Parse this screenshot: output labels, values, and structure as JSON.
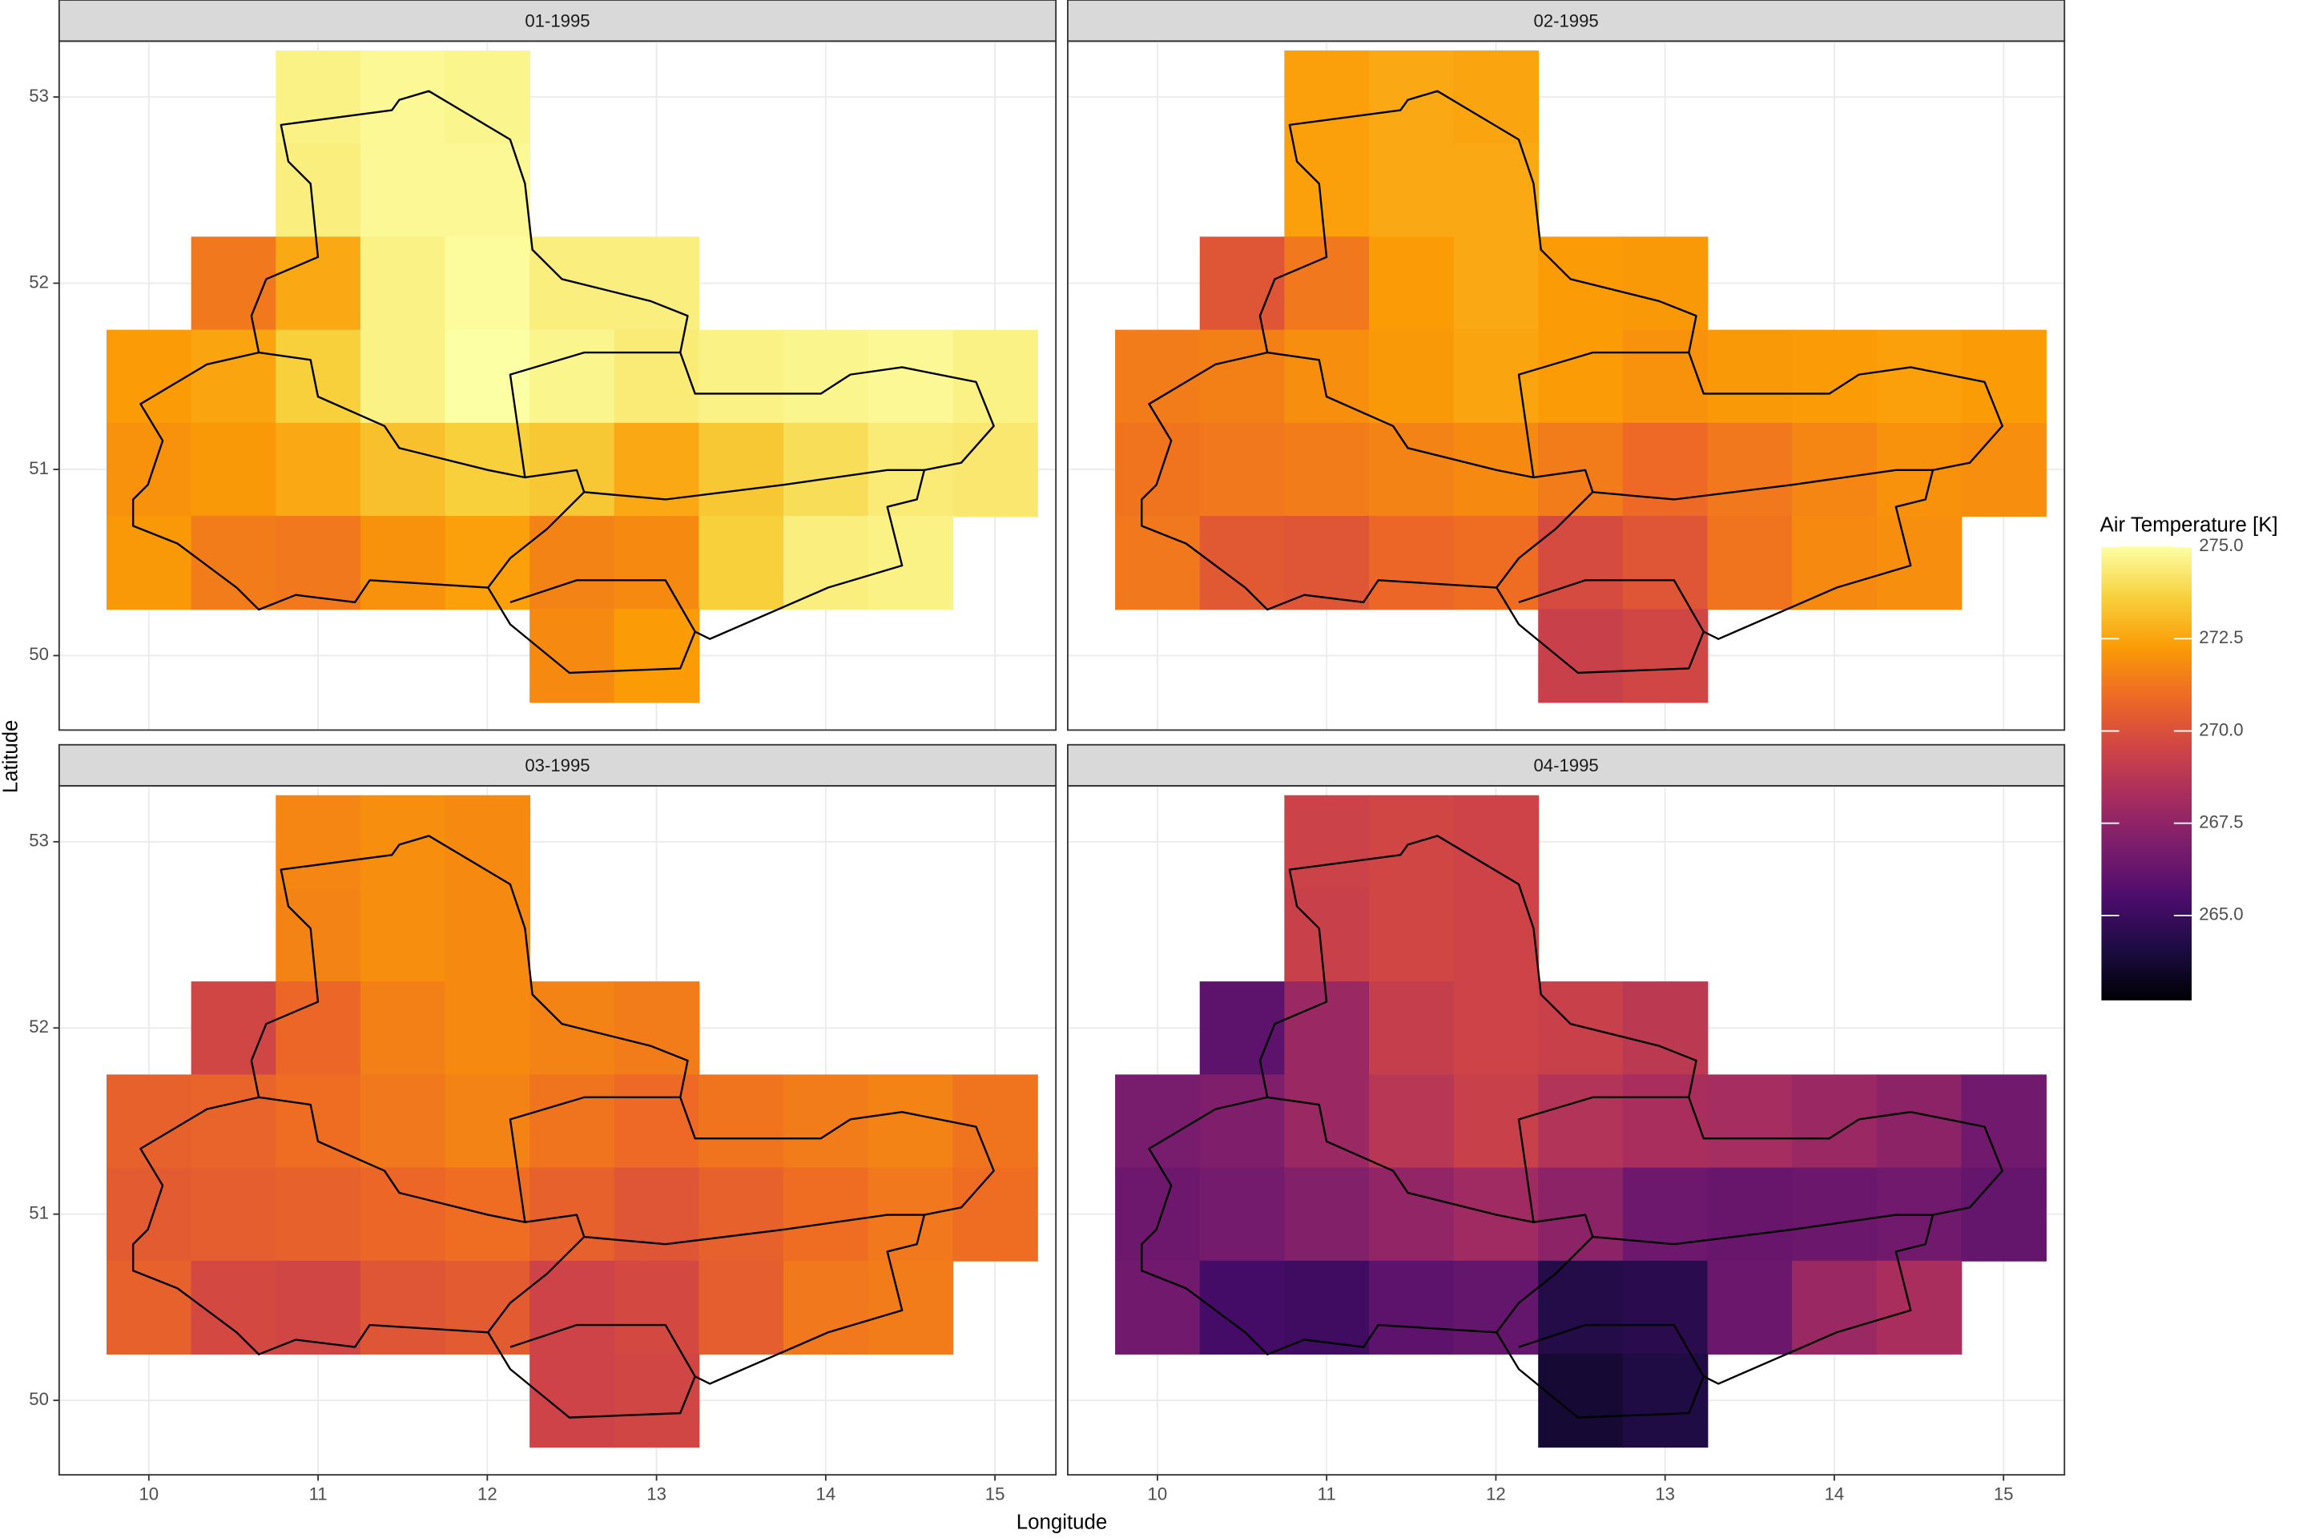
{
  "xlabel": "Longitude",
  "ylabel": "Latitude",
  "colorbar": {
    "title": "Air Temperature [K]",
    "lim": [
      262.7,
      275.0
    ],
    "ticks": [
      {
        "value": 265,
        "label": "265.0"
      },
      {
        "value": 267.5,
        "label": "267.5"
      },
      {
        "value": 270,
        "label": "270.0"
      },
      {
        "value": 272.5,
        "label": "272.5"
      },
      {
        "value": 275,
        "label": "275.0"
      }
    ],
    "colors": [
      "#000004",
      "#1b0c41",
      "#4a0c6b",
      "#781c6d",
      "#a52c60",
      "#cf4446",
      "#ed6925",
      "#fb9b06",
      "#f7d13d",
      "#fcffa4"
    ]
  },
  "chart_data": [
    {
      "type": "raster",
      "title": "01-1995",
      "x": [
        10.0,
        10.5,
        11.0,
        11.5,
        12.0,
        12.5,
        13.0,
        13.5,
        14.0,
        14.5,
        15.0
      ],
      "y": [
        53.0,
        52.5,
        52.0,
        51.5,
        51.0,
        50.5,
        50.0
      ],
      "values": [
        [
          null,
          null,
          274.6,
          274.8,
          274.7,
          null,
          null,
          null,
          null,
          null,
          null
        ],
        [
          null,
          null,
          274.5,
          274.8,
          274.8,
          null,
          null,
          null,
          null,
          null,
          null
        ],
        [
          null,
          271.3,
          272.6,
          274.6,
          274.9,
          274.5,
          274.5,
          null,
          null,
          null,
          null
        ],
        [
          272.3,
          272.5,
          273.6,
          274.6,
          275.0,
          274.7,
          274.4,
          274.6,
          274.7,
          274.8,
          274.6
        ],
        [
          272.0,
          272.2,
          272.6,
          273.2,
          273.6,
          273.4,
          272.6,
          273.4,
          274.0,
          274.4,
          274.3
        ],
        [
          272.2,
          271.4,
          271.3,
          272.0,
          272.4,
          271.6,
          271.8,
          273.6,
          274.5,
          274.6,
          null
        ],
        [
          null,
          null,
          null,
          null,
          null,
          271.8,
          272.3,
          null,
          null,
          null,
          null
        ]
      ],
      "xlim": [
        9.47,
        15.36
      ],
      "ylim": [
        49.6,
        53.3
      ],
      "xticks": [
        10,
        11,
        12,
        13,
        14,
        15
      ],
      "yticks": [
        50,
        51,
        52,
        53
      ]
    },
    {
      "type": "raster",
      "title": "02-1995",
      "x": [
        10.0,
        10.5,
        11.0,
        11.5,
        12.0,
        12.5,
        13.0,
        13.5,
        14.0,
        14.5,
        15.0
      ],
      "y": [
        53.0,
        52.5,
        52.0,
        51.5,
        51.0,
        50.5,
        50.0
      ],
      "values": [
        [
          null,
          null,
          272.4,
          272.6,
          272.5,
          null,
          null,
          null,
          null,
          null,
          null
        ],
        [
          null,
          null,
          272.4,
          272.6,
          272.6,
          null,
          null,
          null,
          null,
          null,
          null
        ],
        [
          null,
          270.2,
          271.3,
          272.3,
          272.6,
          272.3,
          272.2,
          null,
          null,
          null,
          null
        ],
        [
          271.4,
          271.5,
          271.9,
          272.2,
          272.5,
          272.3,
          272.0,
          272.2,
          272.3,
          272.4,
          272.3
        ],
        [
          271.2,
          271.3,
          271.4,
          271.6,
          271.8,
          271.4,
          270.9,
          271.3,
          271.7,
          272.0,
          271.9
        ],
        [
          271.3,
          270.3,
          270.2,
          270.8,
          271.0,
          269.8,
          270.2,
          271.2,
          271.8,
          271.9,
          null
        ],
        [
          null,
          null,
          null,
          null,
          null,
          269.3,
          269.6,
          null,
          null,
          null,
          null
        ]
      ],
      "xlim": [
        9.47,
        15.36
      ],
      "ylim": [
        49.6,
        53.3
      ],
      "xticks": [
        10,
        11,
        12,
        13,
        14,
        15
      ],
      "yticks": [
        50,
        51,
        52,
        53
      ]
    },
    {
      "type": "raster",
      "title": "03-1995",
      "x": [
        10.0,
        10.5,
        11.0,
        11.5,
        12.0,
        12.5,
        13.0,
        13.5,
        14.0,
        14.5,
        15.0
      ],
      "y": [
        53.0,
        52.5,
        52.0,
        51.5,
        51.0,
        50.5,
        50.0
      ],
      "values": [
        [
          null,
          null,
          271.7,
          271.9,
          271.8,
          null,
          null,
          null,
          null,
          null,
          null
        ],
        [
          null,
          null,
          271.6,
          271.9,
          271.8,
          null,
          null,
          null,
          null,
          null,
          null
        ],
        [
          null,
          269.6,
          270.8,
          271.5,
          271.8,
          271.6,
          271.4,
          null,
          null,
          null,
          null
        ],
        [
          270.6,
          270.7,
          271.0,
          271.3,
          271.6,
          271.2,
          270.9,
          271.2,
          271.4,
          271.6,
          271.2
        ],
        [
          270.4,
          270.5,
          270.6,
          270.8,
          271.0,
          270.6,
          270.2,
          270.6,
          271.0,
          271.3,
          271.0
        ],
        [
          270.6,
          269.7,
          269.6,
          270.2,
          270.4,
          269.5,
          269.7,
          270.5,
          271.3,
          271.4,
          null
        ],
        [
          null,
          null,
          null,
          null,
          null,
          269.5,
          269.6,
          null,
          null,
          null,
          null
        ]
      ],
      "xlim": [
        9.47,
        15.36
      ],
      "ylim": [
        49.6,
        53.3
      ],
      "xticks": [
        10,
        11,
        12,
        13,
        14,
        15
      ],
      "yticks": [
        50,
        51,
        52,
        53
      ]
    },
    {
      "type": "raster",
      "title": "04-1995",
      "x": [
        10.0,
        10.5,
        11.0,
        11.5,
        12.0,
        12.5,
        13.0,
        13.5,
        14.0,
        14.5,
        15.0
      ],
      "y": [
        53.0,
        52.5,
        52.0,
        51.5,
        51.0,
        50.5,
        50.0
      ],
      "values": [
        [
          null,
          null,
          269.4,
          269.6,
          269.5,
          null,
          null,
          null,
          null,
          null,
          null
        ],
        [
          null,
          null,
          269.3,
          269.6,
          269.5,
          null,
          null,
          null,
          null,
          null,
          null
        ],
        [
          null,
          266.0,
          267.8,
          269.2,
          269.5,
          269.3,
          268.9,
          null,
          null,
          null,
          null
        ],
        [
          266.8,
          267.0,
          267.8,
          268.8,
          269.3,
          268.6,
          268.3,
          268.2,
          267.8,
          267.4,
          266.6
        ],
        [
          266.5,
          266.7,
          267.1,
          267.6,
          268.0,
          267.4,
          266.5,
          266.3,
          266.4,
          266.6,
          266.2
        ],
        [
          266.6,
          265.3,
          265.1,
          266.0,
          266.2,
          264.3,
          264.5,
          266.4,
          267.8,
          268.3,
          null
        ],
        [
          null,
          null,
          null,
          null,
          null,
          263.8,
          264.2,
          null,
          null,
          null,
          null
        ]
      ],
      "xlim": [
        9.47,
        15.36
      ],
      "ylim": [
        49.6,
        53.3
      ],
      "xticks": [
        10,
        11,
        12,
        13,
        14,
        15
      ],
      "yticks": [
        50,
        51,
        52,
        53
      ]
    }
  ]
}
